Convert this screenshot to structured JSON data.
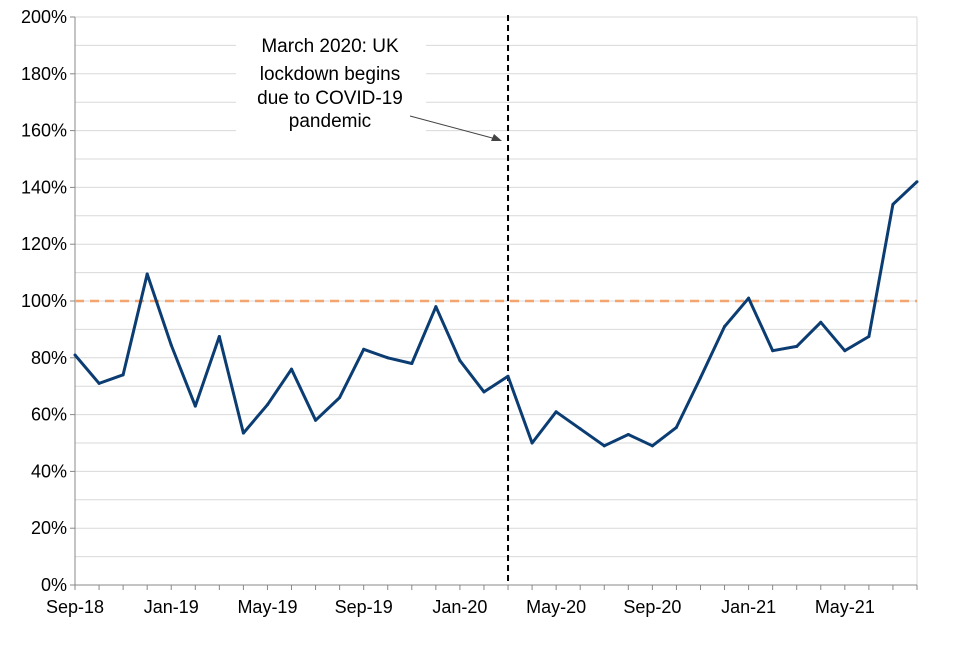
{
  "chart_data": {
    "type": "line",
    "title": "",
    "xlabel": "",
    "ylabel": "",
    "ylim": [
      0,
      200
    ],
    "y_ticks": [
      "0%",
      "20%",
      "40%",
      "60%",
      "80%",
      "100%",
      "120%",
      "140%",
      "160%",
      "180%",
      "200%"
    ],
    "x_tick_labels": [
      "Sep-18",
      "Jan-19",
      "May-19",
      "Sep-19",
      "Jan-20",
      "May-20",
      "Sep-20",
      "Jan-21",
      "May-21"
    ],
    "grid": "horizontal, every 10%",
    "x": [
      "Sep-18",
      "Oct-18",
      "Nov-18",
      "Dec-18",
      "Jan-19",
      "Feb-19",
      "Mar-19",
      "Apr-19",
      "May-19",
      "Jun-19",
      "Jul-19",
      "Aug-19",
      "Sep-19",
      "Oct-19",
      "Nov-19",
      "Dec-19",
      "Jan-20",
      "Feb-20",
      "Mar-20",
      "Apr-20",
      "May-20",
      "Jun-20",
      "Jul-20",
      "Aug-20",
      "Sep-20",
      "Oct-20",
      "Nov-20",
      "Dec-20",
      "Jan-21",
      "Feb-21",
      "Mar-21",
      "Apr-21",
      "May-21",
      "Jun-21",
      "Jul-21",
      "Aug-21"
    ],
    "series": [
      {
        "values": [
          81,
          71,
          74,
          109.5,
          84.5,
          63,
          87.5,
          53.5,
          63.5,
          76,
          58,
          66,
          83,
          80,
          78,
          98,
          79,
          68,
          73.5,
          50,
          61,
          55,
          49,
          53,
          49,
          55.5,
          73,
          91,
          101,
          82.5,
          84,
          92.5,
          82.5,
          87.5,
          134,
          142
        ],
        "color": "#0b3d73"
      }
    ],
    "reference_line": {
      "value": 100,
      "color": "#f4a46e",
      "style": "dashed"
    },
    "event_line": {
      "x": "Mar-20",
      "color": "#000000",
      "style": "dashed"
    },
    "annotation": {
      "lines": [
        "March 2020: UK",
        "lockdown begins",
        "due to COVID-19",
        "pandemic"
      ]
    }
  }
}
